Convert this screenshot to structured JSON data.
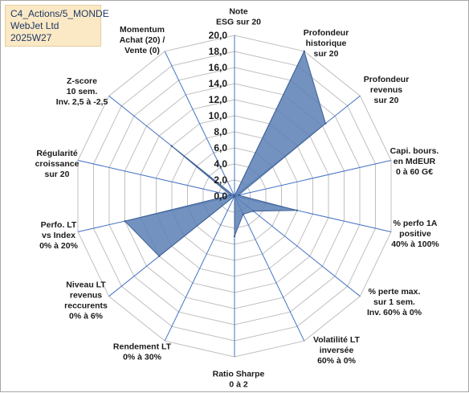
{
  "header": {
    "lines": [
      "C4_Actions/5_MONDE",
      "WebJet Ltd",
      "2025W27"
    ]
  },
  "chart_data": {
    "type": "radar",
    "title": "",
    "r_range": [
      0,
      20
    ],
    "r_ticks": [
      "0,0",
      "2,0",
      "4,0",
      "6,0",
      "8,0",
      "10,0",
      "12,0",
      "14,0",
      "16,0",
      "18,0",
      "20,0"
    ],
    "grid": true,
    "axes": [
      {
        "label": [
          "Note",
          "ESG sur 20"
        ],
        "value": 0
      },
      {
        "label": [
          "Profondeur",
          "historique",
          "sur 20"
        ],
        "value": 20
      },
      {
        "label": [
          "Profondeur",
          "revenus",
          "sur 20"
        ],
        "value": 14.5
      },
      {
        "label": [
          "Capi. bours.",
          "en MdEUR",
          "0 à 60 G€"
        ],
        "value": 0.5
      },
      {
        "label": [
          "% perfo 1A",
          "positive",
          "40% à 100%"
        ],
        "value": 8
      },
      {
        "label": [
          "% perte max.",
          "sur 1 sem.",
          "Inv. 60% à 0%"
        ],
        "value": 3
      },
      {
        "label": [
          "Volatilité LT",
          "inversée",
          "60% à 0%"
        ],
        "value": 2.5
      },
      {
        "label": [
          "Ratio Sharpe",
          "0 à 2"
        ],
        "value": 5
      },
      {
        "label": [
          "Rendement LT",
          "0% à 30%"
        ],
        "value": 0
      },
      {
        "label": [
          "Niveau LT",
          "revenus",
          "reccurents",
          "0% à 6%"
        ],
        "value": 12
      },
      {
        "label": [
          "Perfo. LT",
          "vs Index",
          "0% à 20%"
        ],
        "value": 14
      },
      {
        "label": [
          "Régularité",
          "croissance",
          "sur 20"
        ],
        "value": 0.5
      },
      {
        "label": [
          "Z-score",
          "10 sem.",
          "Inv. 2,5 à -2,5"
        ],
        "value": 10
      },
      {
        "label": [
          "Momentum",
          "Achat (20) /",
          "Vente (0)"
        ],
        "value": 0
      }
    ],
    "colors": {
      "fill": "#5b7fb5",
      "stroke": "#3e5f93",
      "spoke": "#4472c4",
      "grid": "#bfbfbf",
      "label": "#1a1a1a"
    }
  }
}
